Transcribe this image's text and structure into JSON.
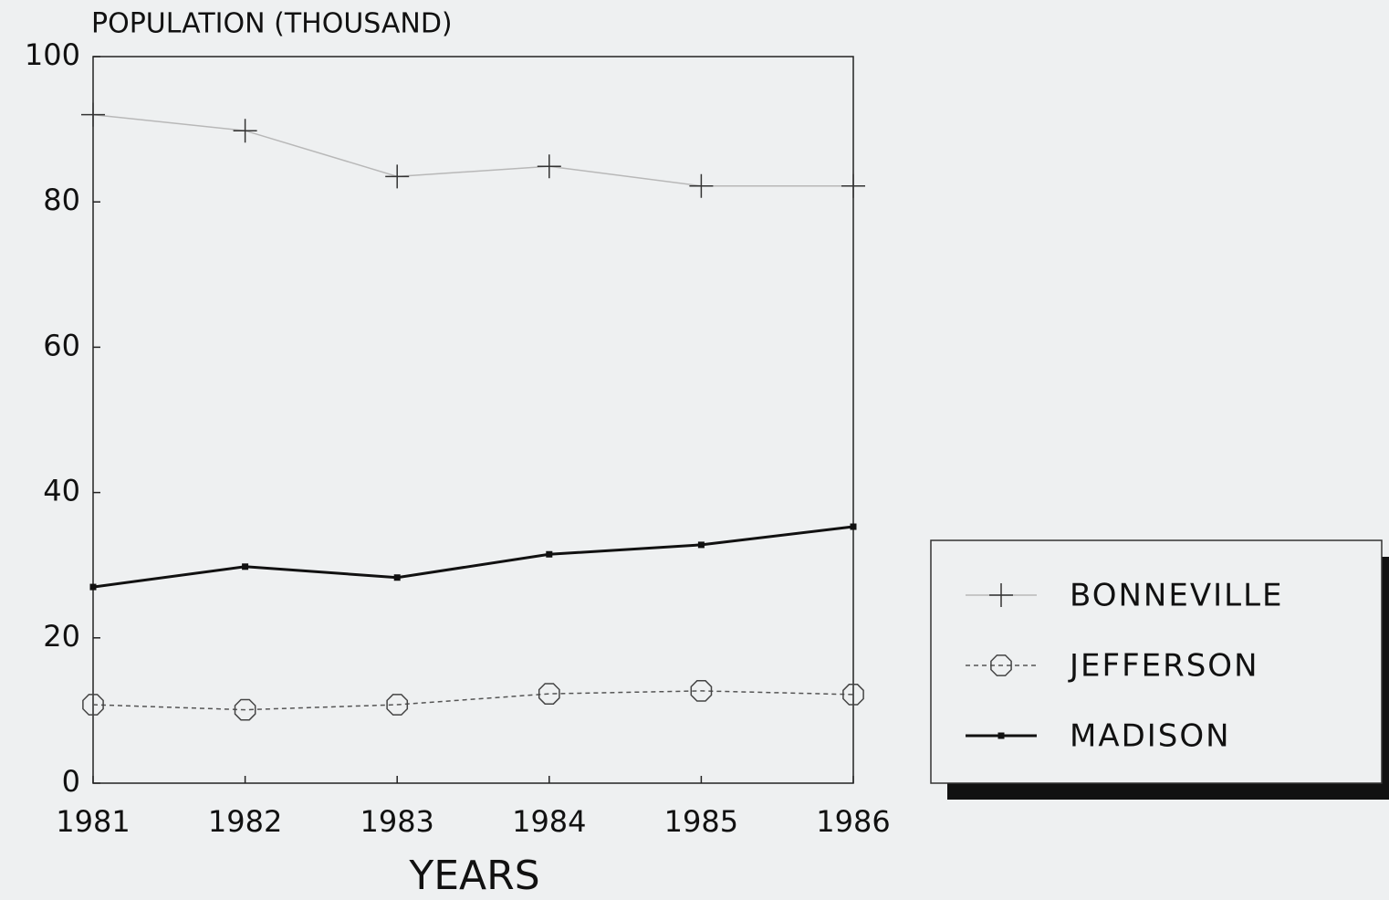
{
  "chart_data": {
    "type": "line",
    "title": "POPULATION (THOUSAND)",
    "xlabel": "YEARS",
    "x": [
      1981,
      1982,
      1983,
      1984,
      1985,
      1986
    ],
    "xlim": [
      1981,
      1986
    ],
    "xticks": [
      1981,
      1982,
      1983,
      1984,
      1985,
      1986
    ],
    "ylim": [
      0,
      100
    ],
    "yticks": [
      0,
      20,
      40,
      60,
      80,
      100
    ],
    "grid": false,
    "legend": "right",
    "series": [
      {
        "name": "BONNEVILLE",
        "color": "#b8b8b8",
        "marker_color": "#333333",
        "marker": "plus",
        "line_style": "solid",
        "values": [
          92.0,
          89.8,
          83.5,
          84.9,
          82.2,
          82.2
        ]
      },
      {
        "name": "JEFFERSON",
        "color": "#555555",
        "marker_color": "#444444",
        "marker": "circle",
        "line_style": "dashed",
        "values": [
          10.8,
          10.1,
          10.8,
          12.3,
          12.7,
          12.2
        ]
      },
      {
        "name": "MADISON",
        "color": "#111111",
        "marker_color": "#111111",
        "marker": "square",
        "line_style": "solid",
        "values": [
          27.0,
          29.8,
          28.3,
          31.5,
          32.8,
          35.3
        ]
      }
    ]
  }
}
